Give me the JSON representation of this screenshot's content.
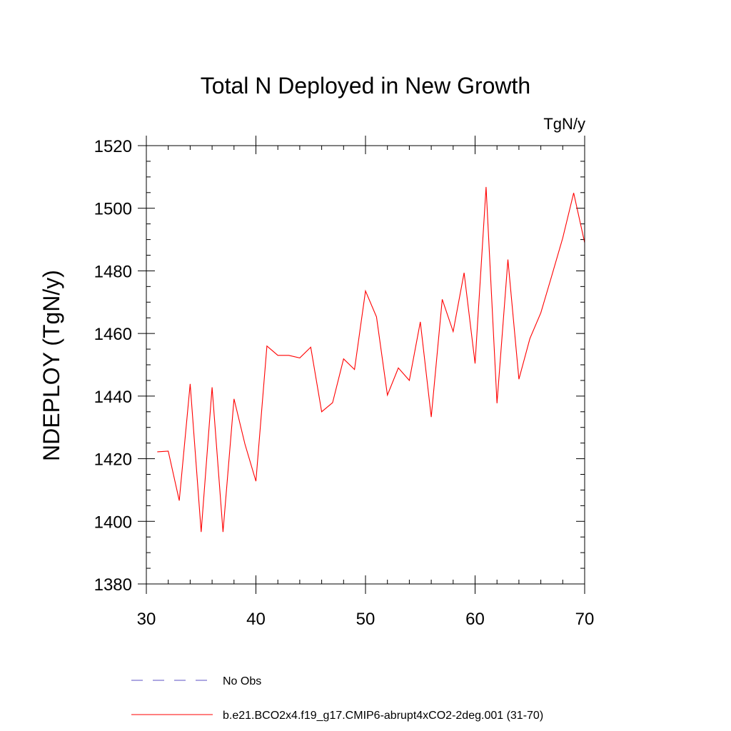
{
  "chart_data": {
    "type": "line",
    "title": "Total N Deployed in New Growth",
    "units": "TgN/y",
    "ylabel": "NDEPLOY  (TgN/y)",
    "xlabel": "",
    "xlim": [
      30,
      70
    ],
    "ylim": [
      1380,
      1520
    ],
    "xticks": [
      30,
      40,
      50,
      60,
      70
    ],
    "yticks": [
      1380,
      1400,
      1420,
      1440,
      1460,
      1480,
      1500,
      1520
    ],
    "grid": false,
    "legend_position": "bottom-left",
    "series": [
      {
        "name": "No Obs",
        "color": "#5b4fc4",
        "style": "dashed",
        "x": [],
        "values": []
      },
      {
        "name": "b.e21.BCO2x4.f19_g17.CMIP6-abrupt4xCO2-2deg.001 (31-70)",
        "color": "#ff0000",
        "style": "solid",
        "x": [
          31,
          32,
          33,
          34,
          35,
          36,
          37,
          38,
          39,
          40,
          41,
          42,
          43,
          44,
          45,
          46,
          47,
          48,
          49,
          50,
          51,
          52,
          53,
          54,
          55,
          56,
          57,
          58,
          59,
          60,
          61,
          62,
          63,
          64,
          65,
          66,
          67,
          68,
          69,
          70
        ],
        "values": [
          1422.2,
          1422.4,
          1406.6,
          1443.9,
          1396.6,
          1442.8,
          1396.6,
          1439.1,
          1424.7,
          1412.8,
          1456.0,
          1453.0,
          1453.0,
          1452.2,
          1455.6,
          1435.0,
          1437.9,
          1451.9,
          1448.5,
          1473.6,
          1465.3,
          1440.3,
          1449.0,
          1445.0,
          1463.7,
          1433.3,
          1470.9,
          1460.6,
          1479.4,
          1450.4,
          1506.8,
          1437.7,
          1483.6,
          1445.4,
          1458.4,
          1466.6,
          1478.5,
          1490.5,
          1504.9,
          1489.0
        ]
      }
    ]
  }
}
